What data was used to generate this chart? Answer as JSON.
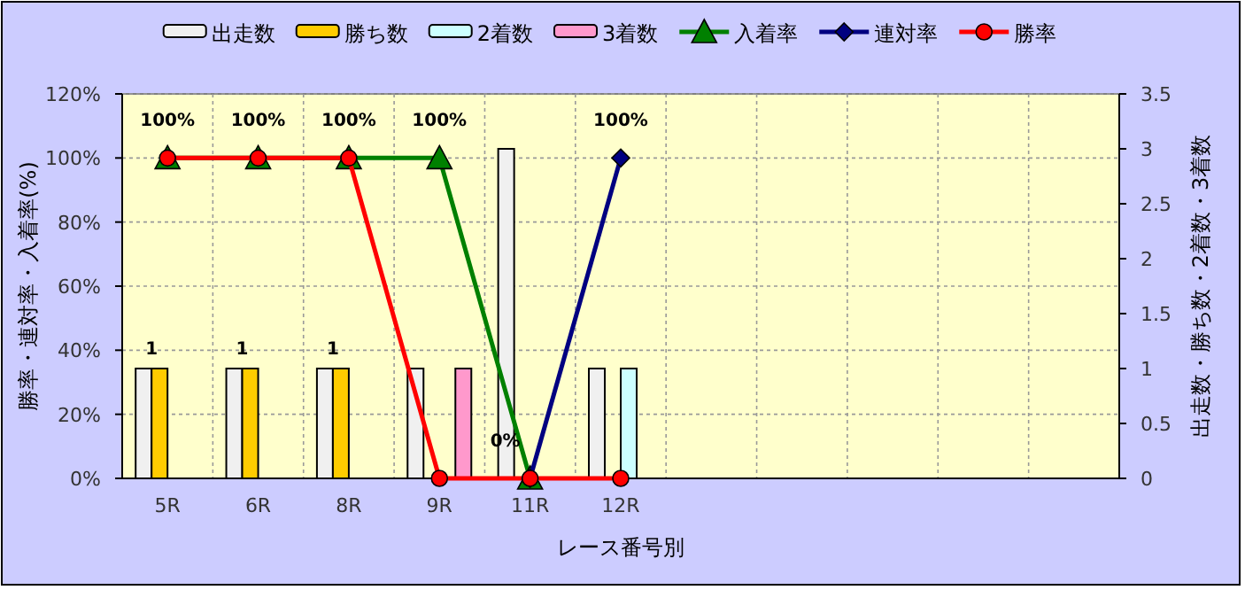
{
  "chart_data": {
    "type": "bar",
    "xlabel": "レース番号別",
    "ylabel": "勝率・連対率・入着率(%)",
    "y2label": "出走数・勝ち数・2着数・3着数",
    "categories": [
      "5R",
      "6R",
      "8R",
      "9R",
      "11R",
      "12R",
      null,
      null,
      null,
      null,
      null
    ],
    "ylim": [
      0,
      120
    ],
    "yticks": [
      {
        "value": 0,
        "label": "0%"
      },
      {
        "value": 20,
        "label": "20%"
      },
      {
        "value": 40,
        "label": "40%"
      },
      {
        "value": 60,
        "label": "60%"
      },
      {
        "value": 80,
        "label": "80%"
      },
      {
        "value": 100,
        "label": "100%"
      },
      {
        "value": 120,
        "label": "120%"
      }
    ],
    "y2lim": [
      0,
      3.5
    ],
    "y2ticks": [
      0,
      0.5,
      1,
      1.5,
      2,
      2.5,
      3,
      3.5
    ],
    "grid": true,
    "legend": "top",
    "series": [
      {
        "name": "出走数",
        "axis": "y2",
        "color": "#f0f0f0",
        "values": [
          1,
          1,
          1,
          1,
          3,
          1,
          null,
          null,
          null,
          null,
          null
        ]
      },
      {
        "name": "勝ち数",
        "axis": "y2",
        "color": "#ffcc00",
        "values": [
          1,
          1,
          1,
          null,
          null,
          null,
          null,
          null,
          null,
          null,
          null
        ],
        "value_labels": [
          "1",
          "1",
          "1",
          null,
          null,
          null,
          null,
          null,
          null,
          null,
          null
        ]
      },
      {
        "name": "2着数",
        "axis": "y2",
        "color": "#ccffff",
        "values": [
          null,
          null,
          null,
          null,
          null,
          1,
          null,
          null,
          null,
          null,
          null
        ]
      },
      {
        "name": "3着数",
        "axis": "y2",
        "color": "#ff99cc",
        "values": [
          null,
          null,
          null,
          1,
          null,
          null,
          null,
          null,
          null,
          null,
          null
        ]
      },
      {
        "name": "入着率",
        "type": "line",
        "marker": "triangle",
        "color": "#008000",
        "values": [
          100,
          100,
          100,
          100,
          0,
          null,
          null,
          null,
          null,
          null,
          null
        ],
        "value_labels": [
          null,
          null,
          null,
          "100%",
          "0%",
          null,
          null,
          null,
          null,
          null,
          null
        ]
      },
      {
        "name": "連対率",
        "type": "line",
        "marker": "diamond",
        "color": "#000080",
        "values": [
          null,
          null,
          null,
          null,
          0,
          100,
          null,
          null,
          null,
          null,
          null
        ],
        "value_labels": [
          null,
          null,
          null,
          null,
          null,
          "100%",
          null,
          null,
          null,
          null,
          null
        ]
      },
      {
        "name": "勝率",
        "type": "line",
        "marker": "circle",
        "color": "#ff0000",
        "values": [
          100,
          100,
          100,
          0,
          0,
          0,
          null,
          null,
          null,
          null,
          null
        ],
        "value_labels": [
          "100%",
          "100%",
          "100%",
          null,
          null,
          null,
          null,
          null,
          null,
          null,
          null
        ]
      }
    ]
  }
}
